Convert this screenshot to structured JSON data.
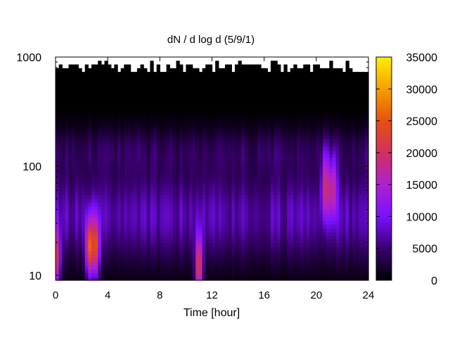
{
  "chart_data": {
    "type": "heatmap",
    "title": "dN / d log d (5/9/1)",
    "xlabel": "Time [hour]",
    "ylabel": "",
    "xlim": [
      0,
      24
    ],
    "x_ticks": [
      "0",
      "4",
      "8",
      "12",
      "16",
      "20",
      "24"
    ],
    "y_scale": "log",
    "ylim": [
      9,
      1000
    ],
    "y_ticks": [
      "10",
      "100",
      "1000"
    ],
    "colorbar": {
      "min": 0,
      "max": 35000,
      "ticks": [
        "0",
        "5000",
        "10000",
        "15000",
        "20000",
        "25000",
        "30000",
        "35000"
      ],
      "palette": [
        "#000000",
        "#3a0070",
        "#7a10ff",
        "#b020d0",
        "#d03060",
        "#e85010",
        "#f5a000",
        "#fff000"
      ]
    },
    "features": [
      {
        "x_center": 0.1,
        "y_center": 14,
        "peak": 17000
      },
      {
        "x_center": 2.6,
        "y_center": 18,
        "peak": 22000
      },
      {
        "x_center": 3.1,
        "y_center": 18,
        "peak": 19000
      },
      {
        "x_center": 11.0,
        "y_center": 12,
        "peak": 21000
      },
      {
        "x_center": 20.7,
        "y_center": 65,
        "peak": 17000
      },
      {
        "x_center": 21.3,
        "y_center": 65,
        "peak": 14000
      }
    ],
    "grid": false
  }
}
